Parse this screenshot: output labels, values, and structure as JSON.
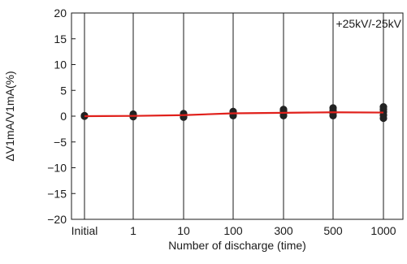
{
  "chart_data": {
    "type": "line",
    "title": "",
    "xlabel": "Number of discharge (time)",
    "ylabel": "ΔV1mA/V1mA(%)",
    "annotation": "+25kV/-25kV",
    "categories": [
      "Initial",
      "1",
      "10",
      "100",
      "300",
      "500",
      "1000"
    ],
    "y_ticks": [
      "20",
      "15",
      "10",
      "5",
      "0",
      "−5",
      "−10",
      "−15",
      "−20"
    ],
    "ylim": [
      -20,
      20
    ],
    "grid": "vertical lines at each category",
    "series": [
      {
        "type": "line",
        "color": "#e0201b",
        "values": [
          0,
          0.05,
          0.2,
          0.55,
          0.65,
          0.75,
          0.7
        ]
      },
      {
        "type": "scatter",
        "color": "#222222",
        "points": [
          [
            0,
            0
          ],
          [
            0,
            0.1
          ],
          [
            1,
            -0.1
          ],
          [
            1,
            0.15
          ],
          [
            1,
            0.4
          ],
          [
            2,
            -0.2
          ],
          [
            2,
            0.2
          ],
          [
            2,
            0.5
          ],
          [
            3,
            0.1
          ],
          [
            3,
            0.5
          ],
          [
            3,
            0.9
          ],
          [
            4,
            0.1
          ],
          [
            4,
            0.6
          ],
          [
            4,
            1.0
          ],
          [
            4,
            1.3
          ],
          [
            5,
            0.1
          ],
          [
            5,
            0.6
          ],
          [
            5,
            1.1
          ],
          [
            5,
            1.6
          ],
          [
            6,
            -0.4
          ],
          [
            6,
            0.2
          ],
          [
            6,
            0.8
          ],
          [
            6,
            1.3
          ],
          [
            6,
            1.8
          ]
        ]
      }
    ]
  }
}
